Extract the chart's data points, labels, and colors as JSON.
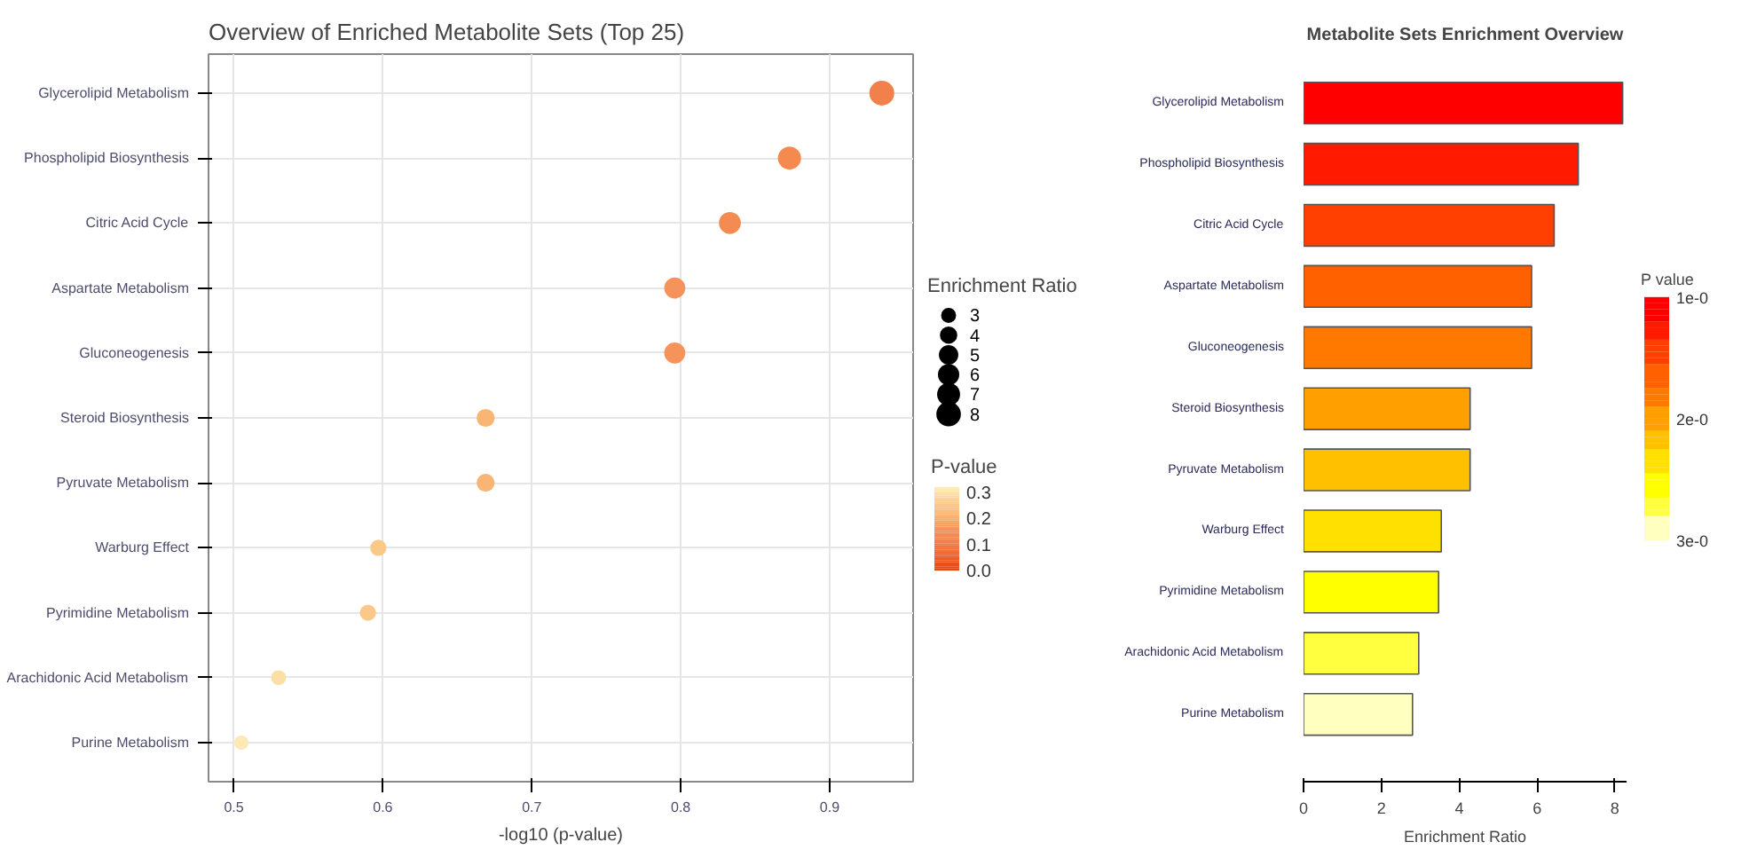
{
  "chart_data": [
    {
      "type": "bubble",
      "orientation": "horizontal",
      "title": "Overview of Enriched Metabolite Sets (Top 25)",
      "xlabel": "-log10 (p-value)",
      "categories": [
        "Glycerolipid Metabolism",
        "Phospholipid Biosynthesis",
        "Citric Acid Cycle",
        "Aspartate Metabolism",
        "Gluconeogenesis",
        "Steroid Biosynthesis",
        "Pyruvate Metabolism",
        "Warburg Effect",
        "Pyrimidine Metabolism",
        "Arachidonic Acid Metabolism",
        "Purine Metabolism"
      ],
      "values": [
        0.935,
        0.873,
        0.833,
        0.796,
        0.796,
        0.669,
        0.669,
        0.597,
        0.59,
        0.53,
        0.505
      ],
      "sizes": [
        8.2,
        7.1,
        6.4,
        5.9,
        5.9,
        4.3,
        4.3,
        3.5,
        3.5,
        3.0,
        2.8
      ],
      "cvalues": [
        0.116,
        0.134,
        0.147,
        0.16,
        0.16,
        0.214,
        0.214,
        0.253,
        0.257,
        0.295,
        0.313
      ],
      "colors": [
        "#f2804a",
        "#f48a50",
        "#f48c52",
        "#f5935a",
        "#f5935a",
        "#f8b574",
        "#f8b574",
        "#fac887",
        "#fac98a",
        "#fcdfa5",
        "#fde9b5"
      ],
      "size_legend": [
        3,
        4,
        5,
        6,
        7,
        8
      ],
      "legend_title": "Enrichment Ratio",
      "clabel": "P-value",
      "clim": [
        0,
        0.32
      ],
      "cticks": [
        {
          "value": 0,
          "label": "0.0"
        },
        {
          "value": 0.1,
          "label": "0.1"
        },
        {
          "value": 0.2,
          "label": "0.2"
        },
        {
          "value": 0.3,
          "label": "0.3"
        }
      ],
      "xlim": [
        0.483,
        0.956
      ],
      "xticks": [
        0.5,
        0.6,
        0.7,
        0.8,
        0.9
      ],
      "grid": true
    },
    {
      "type": "bar",
      "orientation": "horizontal",
      "title": "Metabolite Sets Enrichment Overview",
      "xlabel": "Enrichment Ratio",
      "categories": [
        "Glycerolipid Metabolism",
        "Phospholipid Biosynthesis",
        "Citric Acid Cycle",
        "Aspartate Metabolism",
        "Gluconeogenesis",
        "Steroid Biosynthesis",
        "Pyruvate Metabolism",
        "Warburg Effect",
        "Pyrimidine Metabolism",
        "Arachidonic Acid Metabolism",
        "Purine Metabolism"
      ],
      "values": [
        8.2,
        7.06,
        6.44,
        5.86,
        5.86,
        4.28,
        4.28,
        3.54,
        3.47,
        2.96,
        2.8
      ],
      "colors": [
        "#ff0000",
        "#ff1a00",
        "#ff4000",
        "#ff6000",
        "#ff7800",
        "#ffa000",
        "#ffc000",
        "#ffe000",
        "#ffff00",
        "#ffff40",
        "#ffffc0"
      ],
      "clabel": "P value",
      "clim": [
        3,
        1
      ],
      "cticks": [
        {
          "value": 1,
          "label": "1e-0"
        },
        {
          "value": 2,
          "label": "2e-0"
        },
        {
          "value": 3,
          "label": "3e-0"
        }
      ],
      "xlim": [
        0,
        8.3
      ],
      "xticks": [
        0,
        2,
        4,
        6,
        8
      ],
      "grid": false
    }
  ]
}
